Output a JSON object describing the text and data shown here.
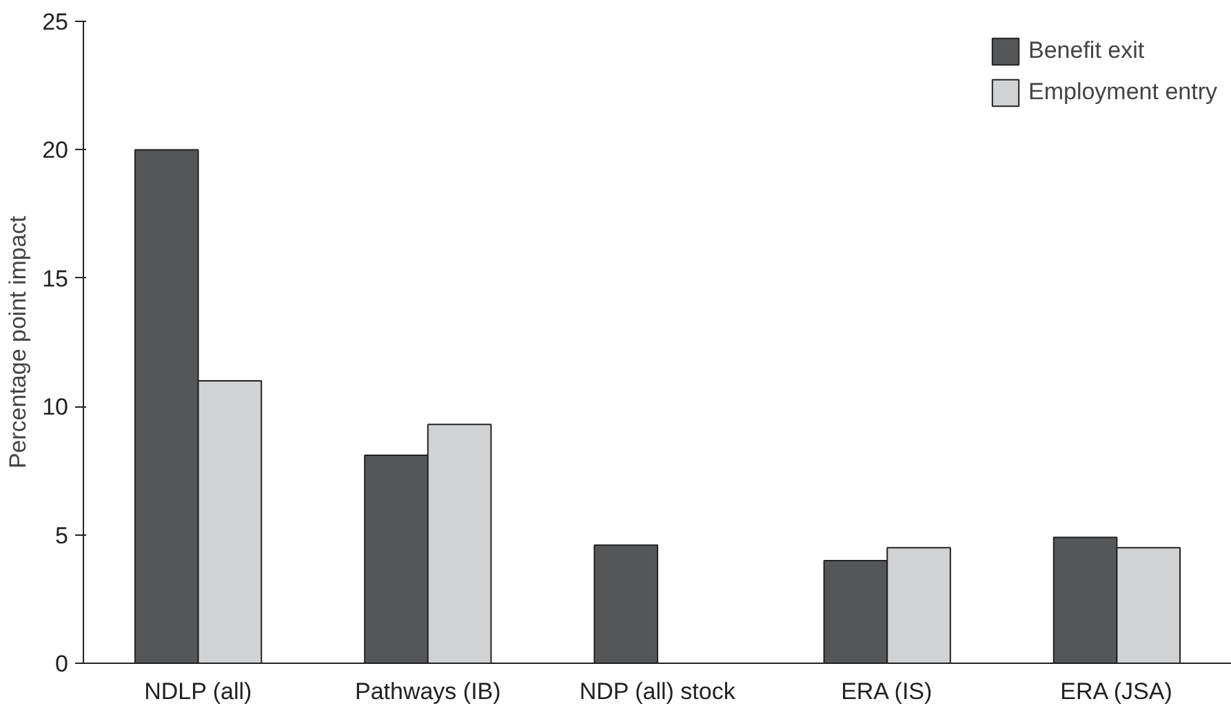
{
  "chart_data": {
    "type": "bar",
    "ylabel": "Percentage point impact",
    "categories": [
      "NDLP (all)",
      "Pathways (IB)",
      "NDP (all) stock",
      "ERA (IS)",
      "ERA (JSA)"
    ],
    "series": [
      {
        "name": "Benefit exit",
        "color": "#555658",
        "values": [
          20.0,
          8.1,
          4.6,
          4.0,
          4.9
        ]
      },
      {
        "name": "Employment entry",
        "color": "#d1d2d4",
        "values": [
          11.0,
          9.3,
          null,
          4.5,
          4.5
        ]
      }
    ],
    "ylim": [
      0,
      25
    ],
    "yticks": [
      0,
      5,
      10,
      15,
      20,
      25
    ],
    "grid": false,
    "legend": "top right"
  }
}
